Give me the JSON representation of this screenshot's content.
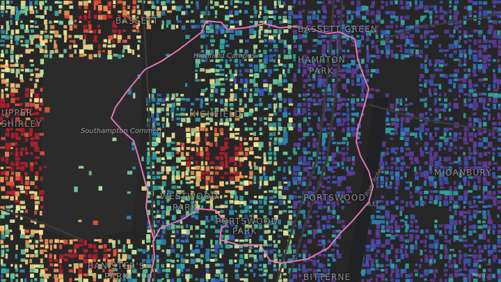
{
  "colors": {
    "background": "#262626",
    "park": "#2b2b2b",
    "road": "#3a3a3a",
    "water": "#1f2124",
    "boundary": "#e676b5",
    "palette": [
      "#5e3c99",
      "#3d56b8",
      "#2f86b8",
      "#35a7a0",
      "#6fcaa0",
      "#b7e3a3",
      "#f4eb9f",
      "#fcc97a",
      "#f39a5a",
      "#e5523d",
      "#b71f2f"
    ]
  },
  "labels": {
    "highfield_campus": "Highfield Campus",
    "southampton_common": "Southampton Common",
    "highfield": "HIGHFIELD",
    "westwood_park_1": "WESTWOOD",
    "westwood_park_2": "PARK",
    "portswood_park_1": "PORTSWOOD",
    "portswood_park_2": "PARK",
    "portswood": "PORTSWOOD",
    "banisters_park_1": "BANISTER'S",
    "banisters_park_2": "PARK",
    "bitterne_park": "BITTERNE",
    "bassett": "BASSETT",
    "hampton_park_1": "HAMPTON",
    "hampton_park_2": "PARK",
    "upper_shirley_1": "UPPER",
    "upper_shirley_2": "SHIRLEY",
    "midanbury": "MIDANBURY",
    "bassett_green": "BASSETT GREEN",
    "road_a33": "A33",
    "road_river": "River Itchen",
    "road_food": "Food..."
  }
}
